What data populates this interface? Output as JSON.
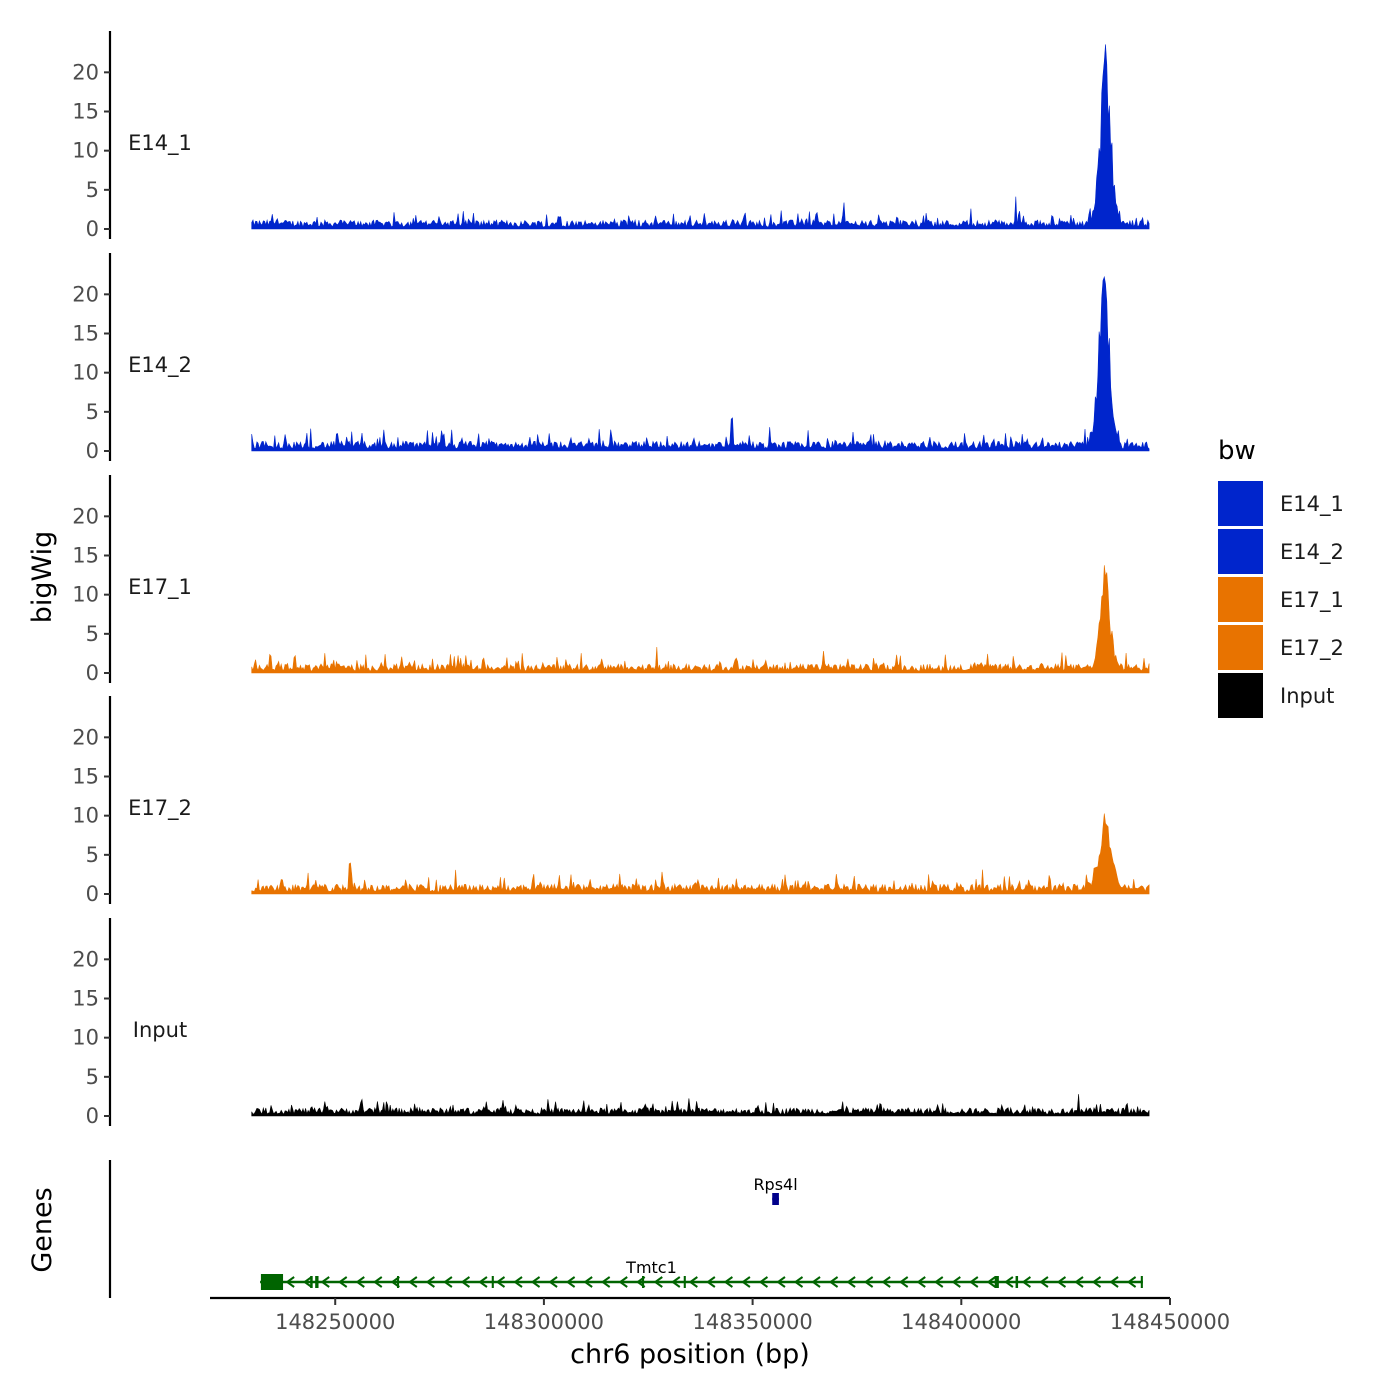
{
  "chart_data": {
    "type": "area",
    "y_axis_title": "bigWig",
    "x_axis_title": "chr6 position (bp)",
    "genes_axis_title": "Genes",
    "legend_title": "bw",
    "xlim": [
      148220000,
      148450000
    ],
    "data_range": [
      148230000,
      148445000
    ],
    "ylim": [
      0,
      24
    ],
    "y_ticks": [
      0,
      5,
      10,
      15,
      20
    ],
    "x_ticks": [
      148250000,
      148300000,
      148350000,
      148400000,
      148450000
    ],
    "x_tick_labels": [
      "148250000",
      "148300000",
      "148350000",
      "148400000",
      "148450000"
    ],
    "tracks": [
      {
        "name": "E14_1",
        "color": "#0025cc",
        "baseline": 1.0,
        "noise": 1.6,
        "peak_x": 148434500,
        "peak_max": 23,
        "peak_width": 1800,
        "spikes": [
          [
            148372000,
            3.5
          ],
          [
            148413000,
            4.2
          ]
        ]
      },
      {
        "name": "E14_2",
        "color": "#0025cc",
        "baseline": 1.1,
        "noise": 1.8,
        "peak_x": 148434200,
        "peak_max": 23.4,
        "peak_width": 1800,
        "spikes": [
          [
            148345000,
            4.3
          ],
          [
            148278000,
            3.0
          ]
        ]
      },
      {
        "name": "E17_1",
        "color": "#e87300",
        "baseline": 1.0,
        "noise": 1.7,
        "peak_x": 148434500,
        "peak_max": 13,
        "peak_width": 1700,
        "spikes": [
          [
            148327000,
            3.4
          ],
          [
            148367000,
            3.0
          ]
        ]
      },
      {
        "name": "E17_2",
        "color": "#e87300",
        "baseline": 1.1,
        "noise": 1.9,
        "peak_x": 148434500,
        "peak_max": 9.5,
        "peak_width": 2200,
        "spikes": [
          [
            148253500,
            4.2
          ],
          [
            148405000,
            3.3
          ]
        ]
      },
      {
        "name": "Input",
        "color": "#000000",
        "baseline": 0.9,
        "noise": 1.3,
        "peak_x": 0,
        "peak_max": 0,
        "peak_width": 1,
        "spikes": [
          [
            148428000,
            2.8
          ]
        ]
      }
    ],
    "genes": [
      {
        "name": "Tmtc1",
        "start": 148232000,
        "end": 148443500,
        "strand": "-",
        "color": "#006400",
        "row": 2,
        "exons": [
          [
            148232200,
            148237500
          ],
          [
            148244000,
            148244600
          ],
          [
            148245200,
            148246000
          ],
          [
            148264800,
            148265300
          ],
          [
            148287500,
            148288000
          ],
          [
            148323500,
            148324000
          ],
          [
            148333500,
            148334000
          ],
          [
            148408000,
            148409000
          ],
          [
            148413000,
            148413600
          ],
          [
            148443000,
            148443500
          ]
        ]
      },
      {
        "name": "Rps4l",
        "start": 148354700,
        "end": 148356300,
        "strand": "-",
        "color": "#00008b",
        "row": 1,
        "exons": [
          [
            148354700,
            148356300
          ]
        ]
      }
    ]
  }
}
